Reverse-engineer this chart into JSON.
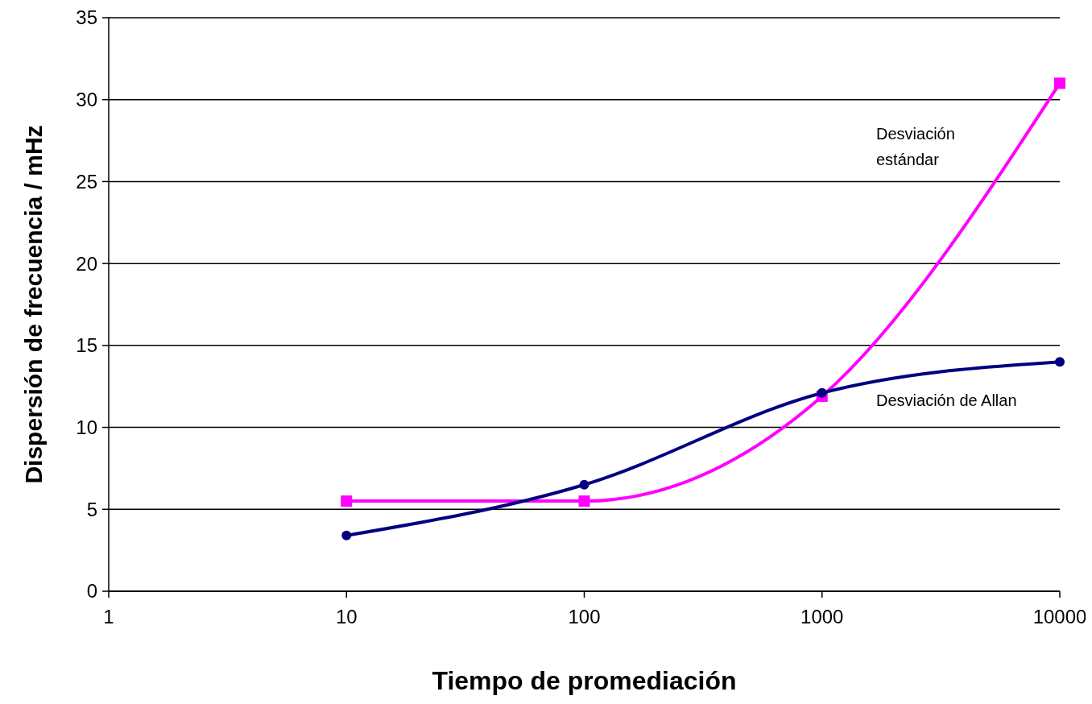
{
  "chart_data": {
    "type": "line",
    "xlabel": "Tiempo de promediación",
    "ylabel": "Dispersión de frecuencia / mHz",
    "log": "x",
    "xlim": [
      1,
      10000
    ],
    "xticks": [
      1,
      10,
      100,
      1000,
      10000
    ],
    "ylim": [
      0,
      35
    ],
    "yticks": [
      0,
      5,
      10,
      15,
      20,
      25,
      30,
      35
    ],
    "grid": "y",
    "x": [
      10,
      100,
      1000,
      10000
    ],
    "series": [
      {
        "name": "Desviación estándar",
        "color": "#ff00ff",
        "marker": "square",
        "values": [
          5.5,
          5.5,
          11.9,
          31
        ]
      },
      {
        "name": "Desviación de Allan",
        "color": "#000080",
        "marker": "circle",
        "values": [
          3.4,
          6.5,
          12.1,
          14
        ]
      }
    ]
  }
}
